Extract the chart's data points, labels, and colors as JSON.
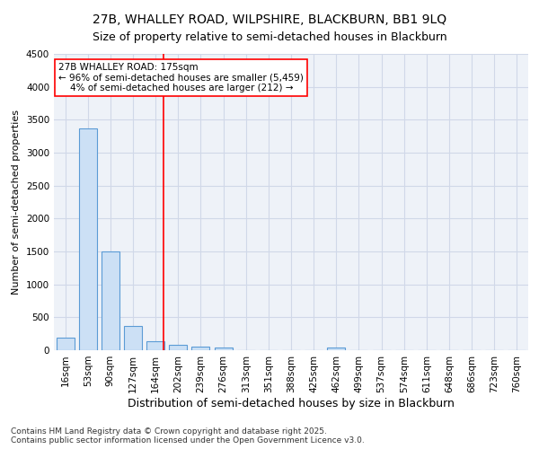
{
  "title1": "27B, WHALLEY ROAD, WILPSHIRE, BLACKBURN, BB1 9LQ",
  "title2": "Size of property relative to semi-detached houses in Blackburn",
  "xlabel": "Distribution of semi-detached houses by size in Blackburn",
  "ylabel": "Number of semi-detached properties",
  "categories": [
    "16sqm",
    "53sqm",
    "90sqm",
    "127sqm",
    "164sqm",
    "202sqm",
    "239sqm",
    "276sqm",
    "313sqm",
    "351sqm",
    "388sqm",
    "425sqm",
    "462sqm",
    "499sqm",
    "537sqm",
    "574sqm",
    "611sqm",
    "648sqm",
    "686sqm",
    "723sqm",
    "760sqm"
  ],
  "values": [
    190,
    3370,
    1500,
    370,
    140,
    80,
    55,
    45,
    0,
    0,
    0,
    0,
    40,
    0,
    0,
    0,
    0,
    0,
    0,
    0,
    0
  ],
  "bar_color": "#cce0f5",
  "bar_edgecolor": "#5b9bd5",
  "vline_x_index": 4.35,
  "vline_color": "red",
  "annotation_line1": "27B WHALLEY ROAD: 175sqm",
  "annotation_line2": "← 96% of semi-detached houses are smaller (5,459)",
  "annotation_line3": "    4% of semi-detached houses are larger (212) →",
  "annotation_box_color": "white",
  "annotation_box_edgecolor": "red",
  "ylim": [
    0,
    4500
  ],
  "yticks": [
    0,
    500,
    1000,
    1500,
    2000,
    2500,
    3000,
    3500,
    4000,
    4500
  ],
  "grid_color": "#d0d8e8",
  "bg_color": "#eef2f8",
  "footnote": "Contains HM Land Registry data © Crown copyright and database right 2025.\nContains public sector information licensed under the Open Government Licence v3.0.",
  "title1_fontsize": 10,
  "title2_fontsize": 9,
  "xlabel_fontsize": 9,
  "ylabel_fontsize": 8,
  "tick_fontsize": 7.5,
  "annotation_fontsize": 7.5,
  "footnote_fontsize": 6.5
}
